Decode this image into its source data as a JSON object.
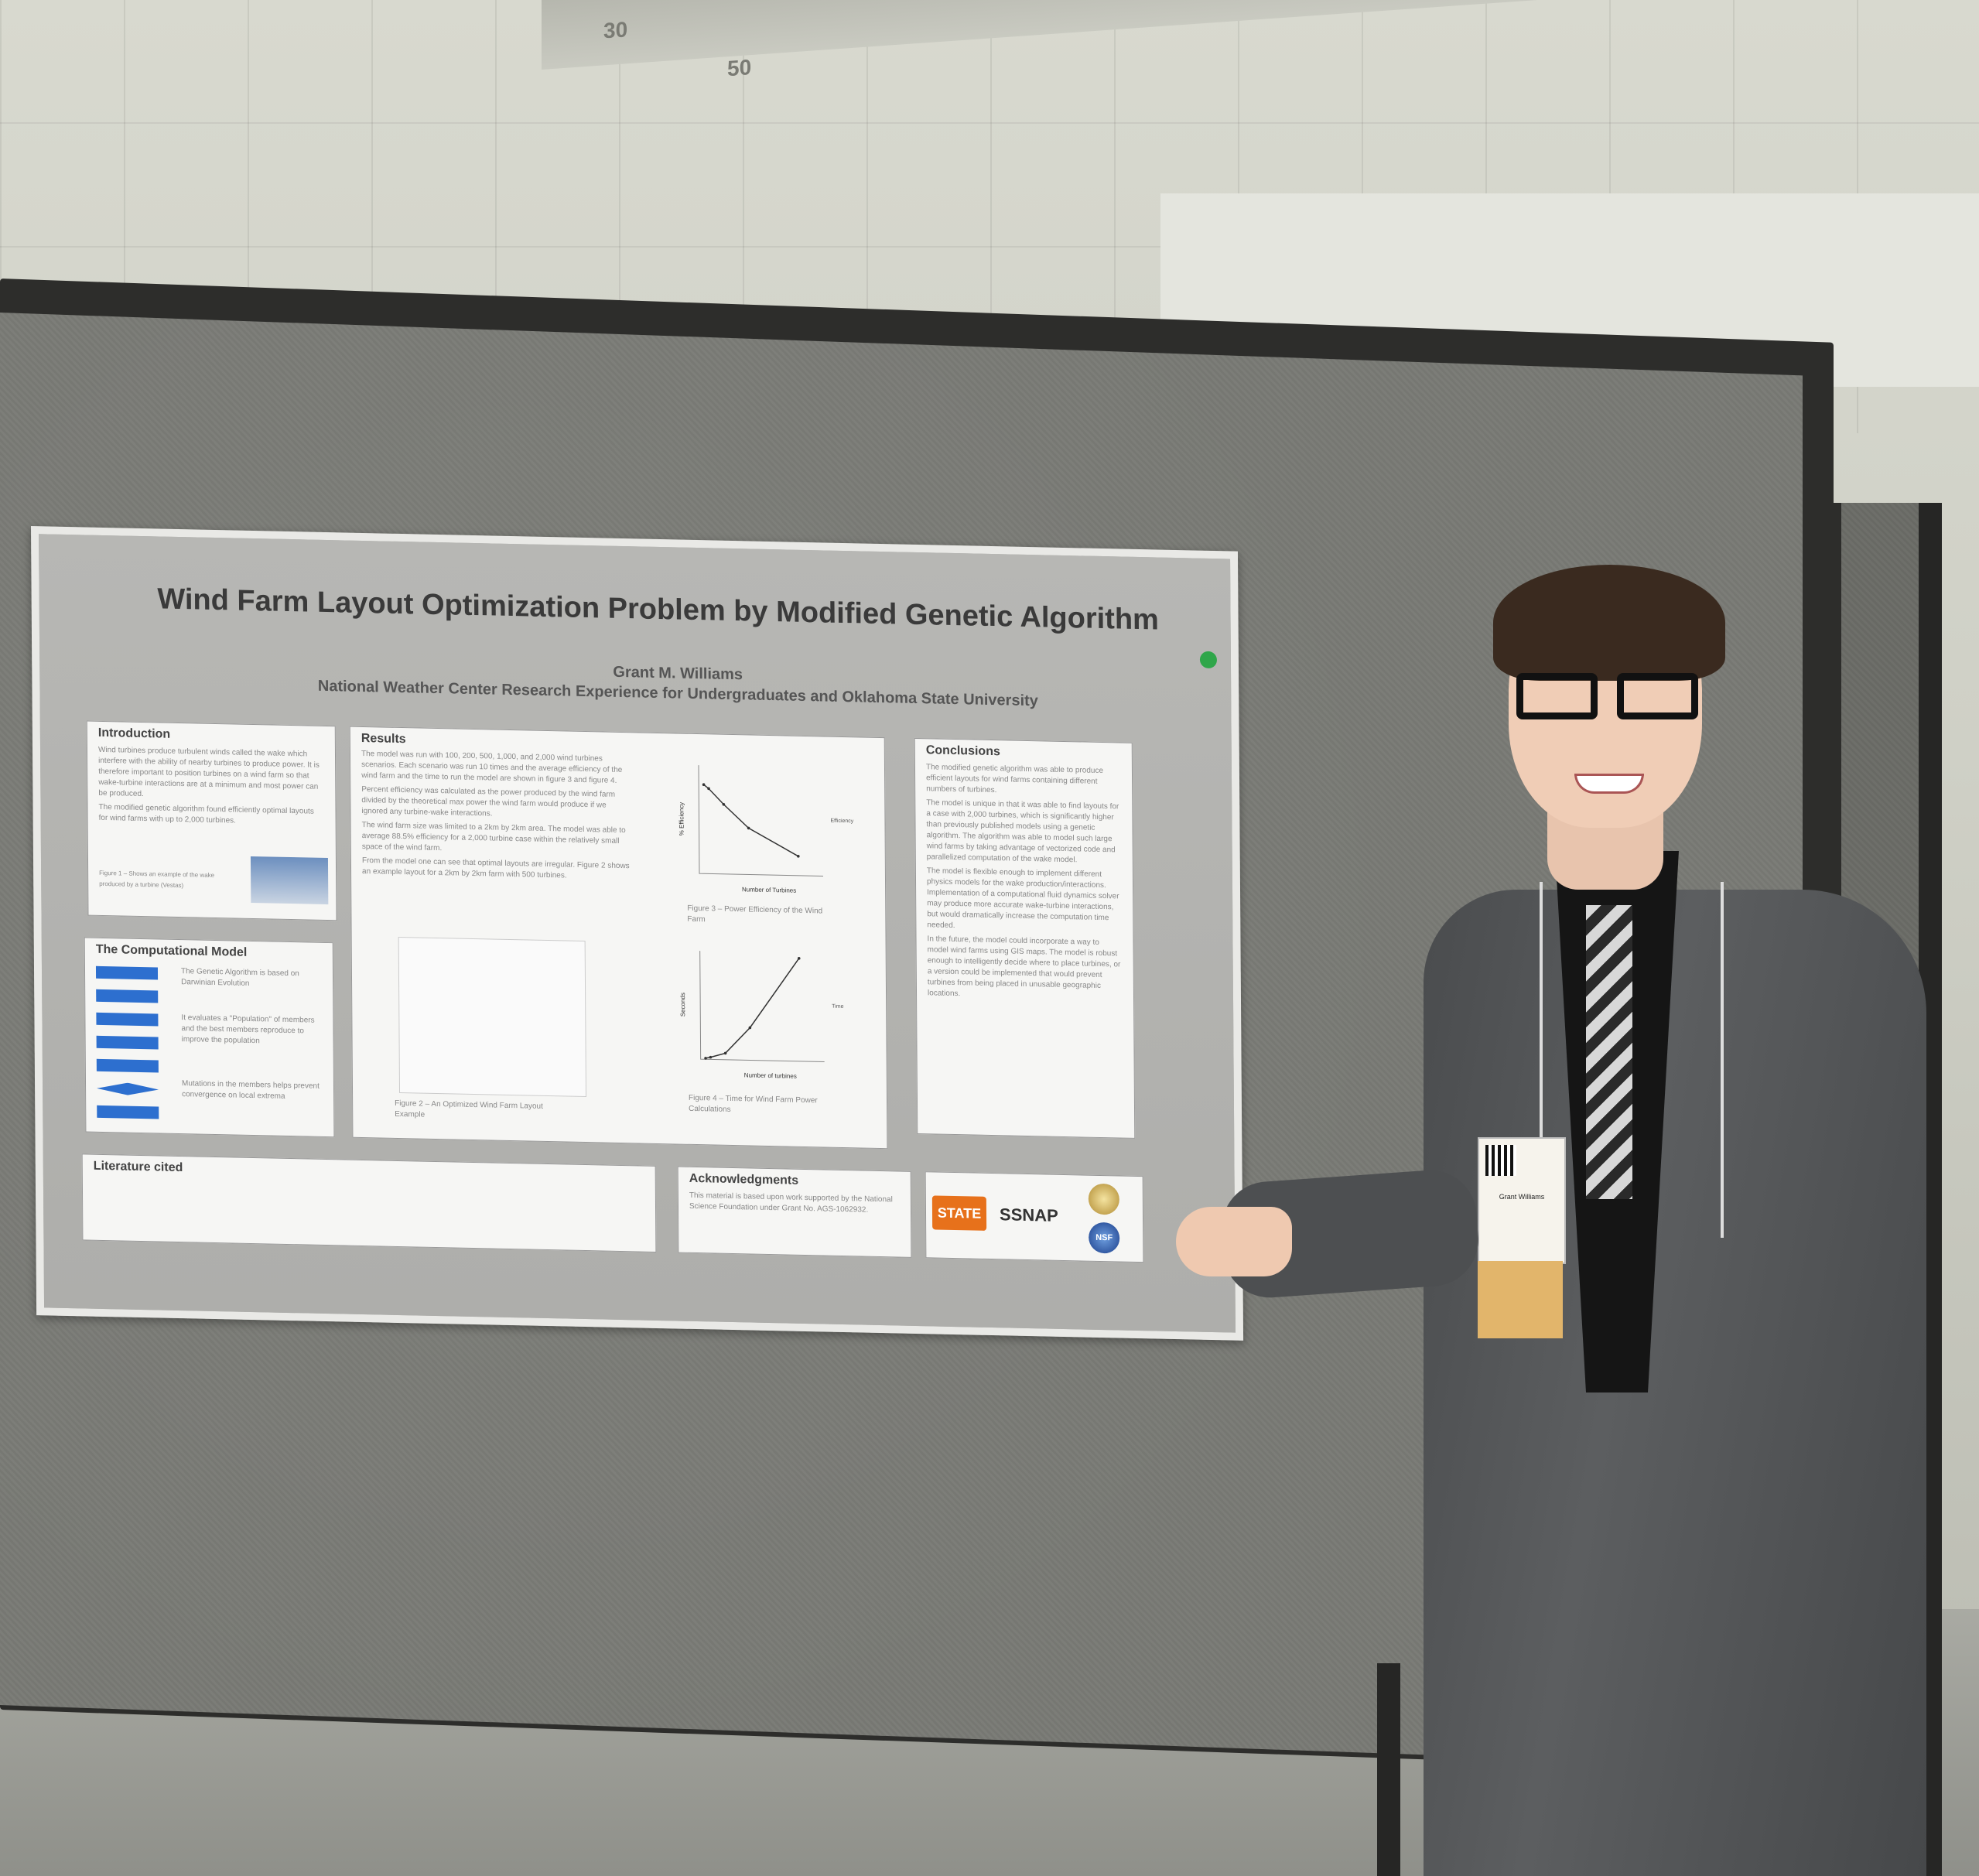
{
  "scene": {
    "background_numbers": [
      "30",
      "50"
    ]
  },
  "poster": {
    "title": "Wind Farm Layout Optimization Problem by Modified Genetic Algorithm",
    "author": "Grant M. Williams",
    "affiliation": "National Weather Center Research Experience for Undergraduates and Oklahoma State University",
    "sections": {
      "introduction": {
        "heading": "Introduction",
        "text": "Wind turbines produce turbulent winds called the wake which interfere with the ability of nearby turbines to produce power. It is therefore important to position turbines on a wind farm so that wake-turbine interactions are at a minimum and most power can be produced.",
        "text2": "The modified genetic algorithm found efficiently optimal layouts for wind farms with up to 2,000 turbines.",
        "figure_caption": "Figure 1 – Shows an example of the wake produced by a turbine (Vestas)"
      },
      "computational_model": {
        "heading": "The Computational Model",
        "text1": "The Genetic Algorithm is based on Darwinian Evolution",
        "text2": "It evaluates a \"Population\" of members and the best members reproduce to improve the population",
        "text3": "Mutations in the members helps prevent convergence on local extrema"
      },
      "results": {
        "heading": "Results",
        "p1": "The model was run with 100, 200, 500, 1,000, and 2,000 wind turbines scenarios. Each scenario was run 10 times and the average efficiency of the wind farm and the time to run the model are shown in figure 3 and figure 4.",
        "p2": "Percent efficiency was calculated as the power produced by the wind farm divided by the theoretical max power the wind farm would produce if we ignored any turbine-wake interactions.",
        "p3": "The wind farm size was limited to a 2km by 2km area. The model was able to average 88.5% efficiency for a 2,000 turbine case within the relatively small space of the wind farm.",
        "p4": "From the model one can see that optimal layouts are irregular. Figure 2 shows an example layout for a 2km by 2km farm with 500 turbines.",
        "fig2_caption": "Figure 2 – An Optimized Wind Farm Layout Example",
        "fig3_caption": "Figure 3 – Power Efficiency of the Wind Farm",
        "fig4_caption": "Figure 4 – Time for Wind Farm Power Calculations",
        "fig3_xlabel": "Number of Turbines",
        "fig3_ylabel": "% Efficiency",
        "fig3_legend": "Efficiency",
        "fig4_xlabel": "Number of turbines",
        "fig4_ylabel": "Seconds",
        "fig4_legend": "Time"
      },
      "conclusions": {
        "heading": "Conclusions",
        "p1": "The modified genetic algorithm was able to produce efficient layouts for wind farms containing different numbers of turbines.",
        "p2": "The model is unique in that it was able to find layouts for a case with 2,000 turbines, which is significantly higher than previously published models using a genetic algorithm. The algorithm was able to model such large wind farms by taking advantage of vectorized code and parallelized computation of the wake model.",
        "p3": "The model is flexible enough to implement different physics models for the wake production/interactions. Implementation of a computational fluid dynamics solver may produce more accurate wake-turbine interactions, but would dramatically increase the computation time needed.",
        "p4": "In the future, the model could incorporate a way to model wind farms using GIS maps. The model is robust enough to intelligently decide where to place turbines, or a version could be implemented that would prevent turbines from being placed in unusable geographic locations."
      },
      "literature": {
        "heading": "Literature cited"
      },
      "acknowledgments": {
        "heading": "Acknowledgments",
        "text": "This material is based upon work supported by the National Science Foundation under Grant No. AGS-1062932."
      },
      "logos": [
        "STATE",
        "SSNAP",
        "NSF"
      ]
    }
  },
  "badge": {
    "name": "Grant Williams"
  },
  "chart_data": [
    {
      "type": "line",
      "title": "",
      "xlabel": "Number of Turbines",
      "ylabel": "% Efficiency",
      "series": [
        {
          "name": "Efficiency",
          "x": [
            100,
            200,
            500,
            1000,
            2000
          ],
          "values": [
            97.5,
            97,
            95,
            92,
            88.5
          ]
        }
      ],
      "xlim": [
        0,
        2500
      ]
    },
    {
      "type": "line",
      "title": "",
      "xlabel": "Number of turbines",
      "ylabel": "Seconds",
      "series": [
        {
          "name": "Time",
          "x": [
            100,
            200,
            500,
            1000,
            2000
          ],
          "values": [
            20,
            40,
            120,
            600,
            1900
          ]
        }
      ],
      "xlim": [
        0,
        2500
      ]
    }
  ]
}
